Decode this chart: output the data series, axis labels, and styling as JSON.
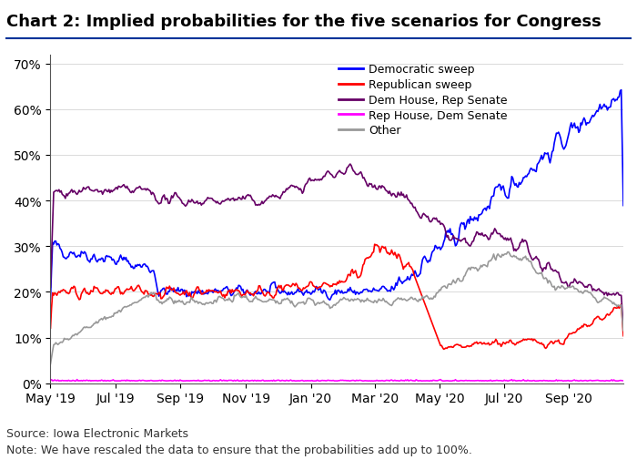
{
  "title": "Chart 2: Implied probabilities for the five scenarios for Congress",
  "source_note": "Source: Iowa Electronic Markets",
  "rescale_note": "Note: We have rescaled the data to ensure that the probabilities add up to 100%.",
  "legend_labels": [
    "Democratic sweep",
    "Republican sweep",
    "Dem House, Rep Senate",
    "Rep House, Dem Senate",
    "Other"
  ],
  "colors": {
    "dem_sweep": "#0000FF",
    "rep_sweep": "#FF0000",
    "dem_house_rep_senate": "#660066",
    "rep_house_dem_senate": "#FF00FF",
    "other": "#999999"
  },
  "ylim": [
    0,
    0.72
  ],
  "yticks": [
    0.0,
    0.1,
    0.2,
    0.3,
    0.4,
    0.5,
    0.6,
    0.7
  ],
  "ytick_labels": [
    "0%",
    "10%",
    "20%",
    "30%",
    "40%",
    "50%",
    "60%",
    "70%"
  ],
  "xtick_labels": [
    "May '19",
    "Jul '19",
    "Sep '19",
    "Nov '19",
    "Jan '20",
    "Mar '20",
    "May '20",
    "Jul '20",
    "Sep '20"
  ],
  "title_fontsize": 13,
  "axis_fontsize": 10,
  "note_fontsize": 9,
  "linewidth": 1.2
}
